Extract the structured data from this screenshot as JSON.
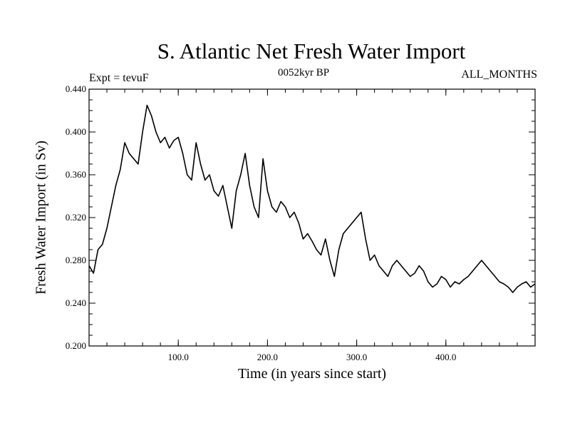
{
  "chart_data": {
    "type": "line",
    "title": "S. Atlantic Net Fresh Water Import",
    "subtitle_left": "Expt = tevuF",
    "subtitle_center": "0052kyr BP",
    "subtitle_right": "ALL_MONTHS",
    "xlabel": "Time (in years since start)",
    "ylabel": "Fresh Water Import (in Sv)",
    "xlim": [
      0,
      500
    ],
    "ylim": [
      0.2,
      0.44
    ],
    "x_ticks": [
      100,
      200,
      300,
      400
    ],
    "x_tick_labels": [
      "100.0",
      "200.0",
      "300.0",
      "400.0"
    ],
    "y_ticks": [
      0.2,
      0.24,
      0.28,
      0.32,
      0.36,
      0.4,
      0.44
    ],
    "y_tick_labels": [
      "0.200",
      "0.240",
      "0.280",
      "0.320",
      "0.360",
      "0.400",
      "0.440"
    ],
    "grid": false,
    "series": [
      {
        "name": "S. Atlantic Net Fresh Water Import",
        "color": "#000000",
        "x": [
          0,
          5,
          10,
          15,
          20,
          25,
          30,
          35,
          40,
          45,
          50,
          55,
          60,
          65,
          70,
          75,
          80,
          85,
          90,
          95,
          100,
          105,
          110,
          115,
          120,
          125,
          130,
          135,
          140,
          145,
          150,
          155,
          160,
          165,
          170,
          175,
          180,
          185,
          190,
          195,
          200,
          205,
          210,
          215,
          220,
          225,
          230,
          235,
          240,
          245,
          250,
          255,
          260,
          265,
          270,
          275,
          280,
          285,
          290,
          295,
          300,
          305,
          310,
          315,
          320,
          325,
          330,
          335,
          340,
          345,
          350,
          355,
          360,
          365,
          370,
          375,
          380,
          385,
          390,
          395,
          400,
          405,
          410,
          415,
          420,
          425,
          430,
          435,
          440,
          445,
          450,
          455,
          460,
          465,
          470,
          475,
          480,
          485,
          490,
          495,
          500
        ],
        "values": [
          0.275,
          0.268,
          0.29,
          0.295,
          0.31,
          0.33,
          0.35,
          0.365,
          0.39,
          0.38,
          0.375,
          0.37,
          0.4,
          0.425,
          0.415,
          0.4,
          0.39,
          0.395,
          0.385,
          0.392,
          0.395,
          0.38,
          0.36,
          0.355,
          0.39,
          0.37,
          0.355,
          0.36,
          0.345,
          0.34,
          0.35,
          0.33,
          0.31,
          0.345,
          0.36,
          0.38,
          0.35,
          0.33,
          0.32,
          0.375,
          0.345,
          0.33,
          0.325,
          0.335,
          0.33,
          0.32,
          0.325,
          0.315,
          0.3,
          0.305,
          0.298,
          0.29,
          0.285,
          0.3,
          0.28,
          0.265,
          0.29,
          0.305,
          0.31,
          0.315,
          0.32,
          0.325,
          0.3,
          0.28,
          0.285,
          0.275,
          0.27,
          0.265,
          0.275,
          0.28,
          0.275,
          0.27,
          0.265,
          0.268,
          0.275,
          0.27,
          0.26,
          0.255,
          0.258,
          0.265,
          0.262,
          0.255,
          0.26,
          0.258,
          0.262,
          0.265,
          0.27,
          0.275,
          0.28,
          0.275,
          0.27,
          0.265,
          0.26,
          0.258,
          0.255,
          0.25,
          0.255,
          0.258,
          0.26,
          0.255,
          0.258
        ]
      }
    ]
  }
}
